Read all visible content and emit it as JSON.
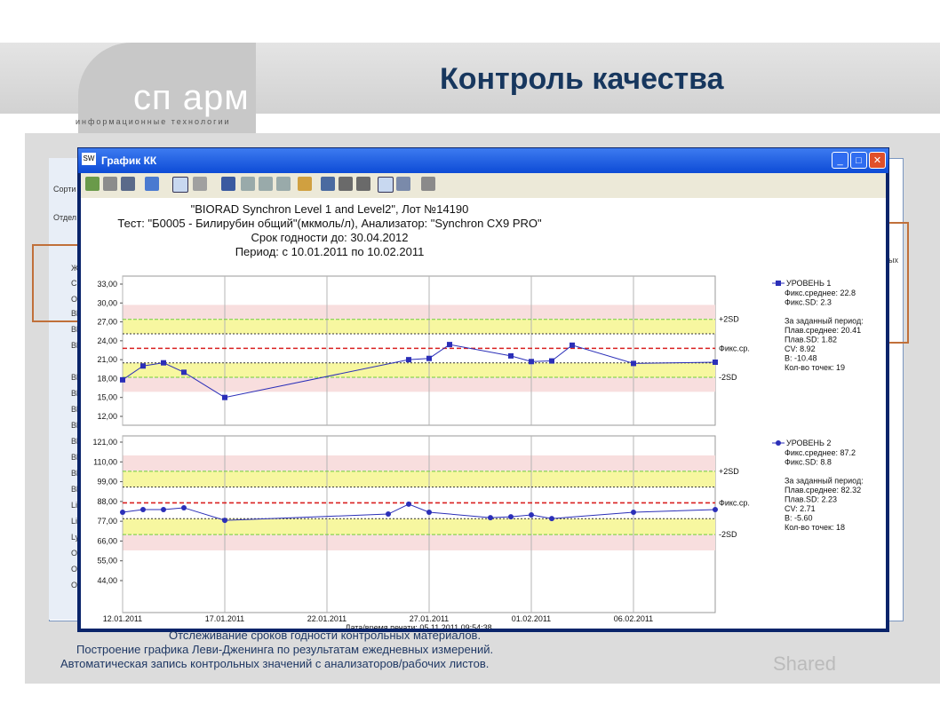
{
  "slide": {
    "title": "Контроль качества",
    "logo_main": "сп арм",
    "logo_sub": "информационные технологии",
    "footer_line1": "Отслеживание сроков годности контрольных материалов.",
    "footer_line2": "Построение графика Леви-Дженинга по результатам ежедневных измерений.",
    "footer_line3": "Автоматическая запись контрольных значений с анализаторов/рабочих листов.",
    "watermark": "Shared"
  },
  "background_window": {
    "labels": [
      "Сорти",
      "Отдел",
      "Ж",
      "С",
      "О",
      "Bl",
      "Bl",
      "Bl",
      "Bl",
      "Bl",
      "Bl",
      "Bl",
      "Bl",
      "Bl",
      "Bl",
      "Bl",
      "Li",
      "Li",
      "Ly",
      "O",
      "O",
      "O"
    ],
    "right_label": "ых"
  },
  "window": {
    "title": "График КК",
    "app_icon": "SW"
  },
  "header": {
    "line1": "\"BIORAD Synchron Level 1 and Level2\", Лот №14190",
    "line2": "Тест: \"Б0005 - Билирубин общий\"(мкмоль/л), Анализатор: \"Synchron CX9 PRO\"",
    "line3": "Срок годности до: 30.04.2012",
    "line4": "Период: с 10.01.2011 по 10.02.2011"
  },
  "chart_data": [
    {
      "type": "line",
      "title": "",
      "xlabel": "Дата/время печати: 05.11.2011 09:54:38",
      "ylabel": "",
      "xlim": [
        "2011-01-12",
        "2011-02-10"
      ],
      "ylim": [
        12,
        33
      ],
      "yticks": [
        "33,00",
        "30,00",
        "27,00",
        "24,00",
        "21,00",
        "18,00",
        "15,00",
        "12,00"
      ],
      "xticks": [
        "12.01.2011",
        "17.01.2011",
        "22.01.2011",
        "27.01.2011",
        "01.02.2011",
        "06.02.2011"
      ],
      "ref_lines": [
        {
          "label": "+2SD",
          "value": 27.4
        },
        {
          "label": "Фикс.ср.",
          "value": 22.8
        },
        {
          "label": "-2SD",
          "value": 18.2
        }
      ],
      "series": [
        {
          "name": "УРОВЕНЬ 1",
          "x": [
            "2011-01-12",
            "2011-01-13",
            "2011-01-14",
            "2011-01-15",
            "2011-01-17",
            "2011-01-26",
            "2011-01-27",
            "2011-01-28",
            "2011-01-31",
            "2011-02-01",
            "2011-02-02",
            "2011-02-03",
            "2011-02-06",
            "2011-02-10"
          ],
          "values": [
            17.8,
            20.0,
            20.5,
            19.0,
            15.0,
            21.0,
            21.2,
            23.4,
            21.6,
            20.7,
            20.8,
            23.3,
            20.4,
            20.6
          ]
        }
      ],
      "legend": {
        "title": "УРОВЕНЬ 1",
        "lines": [
          "Фикс.среднее: 22.8",
          "Фикс.SD: 2.3",
          "",
          "За заданный период:",
          "Плав.среднее: 20.41",
          "Плав.SD: 1.82",
          "CV: 8.92",
          "B: -10.48",
          "Кол-во точек: 19"
        ]
      }
    },
    {
      "type": "line",
      "title": "",
      "xlabel": "",
      "ylabel": "",
      "xlim": [
        "2011-01-12",
        "2011-02-10"
      ],
      "ylim": [
        44,
        121
      ],
      "yticks": [
        "121,00",
        "110,00",
        "99,00",
        "88,00",
        "77,00",
        "66,00",
        "55,00",
        "44,00"
      ],
      "ref_lines": [
        {
          "label": "+2SD",
          "value": 104.8
        },
        {
          "label": "Фикс.ср.",
          "value": 87.2
        },
        {
          "label": "-2SD",
          "value": 69.6
        }
      ],
      "series": [
        {
          "name": "УРОВЕНЬ 2",
          "x": [
            "2011-01-12",
            "2011-01-13",
            "2011-01-14",
            "2011-01-15",
            "2011-01-17",
            "2011-01-25",
            "2011-01-26",
            "2011-01-27",
            "2011-01-30",
            "2011-01-31",
            "2011-02-01",
            "2011-02-02",
            "2011-02-06",
            "2011-02-10"
          ],
          "values": [
            82.0,
            83.5,
            83.5,
            84.5,
            77.5,
            81.0,
            86.5,
            82.0,
            79.0,
            79.5,
            80.5,
            78.5,
            82.0,
            83.5
          ]
        }
      ],
      "legend": {
        "title": "УРОВЕНЬ 2",
        "lines": [
          "Фикс.среднее: 87.2",
          "Фикс.SD: 8.8",
          "",
          "За заданный период:",
          "Плав.среднее: 82.32",
          "Плав.SD: 2.23",
          "CV: 2.71",
          "B: -5.60",
          "Кол-во точек: 18"
        ]
      }
    }
  ],
  "colors": {
    "series": "#2b2fb8",
    "mean": "#d92020",
    "band_inner": "#f7f7a0",
    "band_outer": "#f8dede",
    "sd_line": "#6fcf3a",
    "title_text": "#17375e"
  }
}
